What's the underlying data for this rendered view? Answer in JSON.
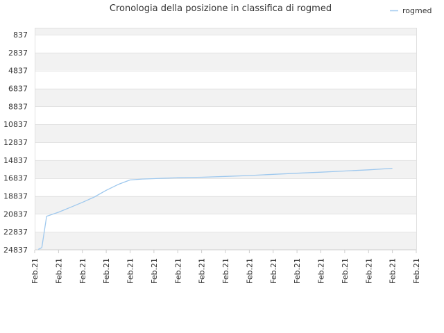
{
  "chart_data": {
    "type": "line",
    "title": "Cronologia della posizione in classifica di rogmed",
    "xlabel": "",
    "ylabel": "",
    "inverted_y": true,
    "y_ticks": [
      837,
      2837,
      4837,
      6837,
      8837,
      10837,
      12837,
      14837,
      16837,
      18837,
      20837,
      22837,
      24837
    ],
    "ylim": [
      837,
      24837
    ],
    "x_tick_labels": [
      "Feb.21",
      "Feb.21",
      "Feb.21",
      "Feb.21",
      "Feb.21",
      "Feb.21",
      "Feb.21",
      "Feb.21",
      "Feb.21",
      "Feb.21",
      "Feb.21",
      "Feb.21",
      "Feb.21",
      "Feb.21",
      "Feb.21",
      "Feb.21",
      "Feb.21"
    ],
    "grid": "horizontal bands",
    "legend": {
      "position": "top-right"
    },
    "series": [
      {
        "name": "rogmed",
        "color": "#9ec8ee",
        "x": [
          0.15,
          0.3,
          0.5,
          1,
          1.5,
          2,
          2.5,
          3,
          3.5,
          4,
          4.5,
          5,
          5.5,
          6,
          7,
          8,
          9,
          10,
          11,
          12,
          13,
          14,
          15
        ],
        "values": [
          24800,
          24600,
          21100,
          20650,
          20100,
          19550,
          18950,
          18200,
          17550,
          17050,
          16950,
          16900,
          16850,
          16800,
          16750,
          16650,
          16550,
          16420,
          16300,
          16180,
          16050,
          15920,
          15750
        ]
      }
    ]
  }
}
